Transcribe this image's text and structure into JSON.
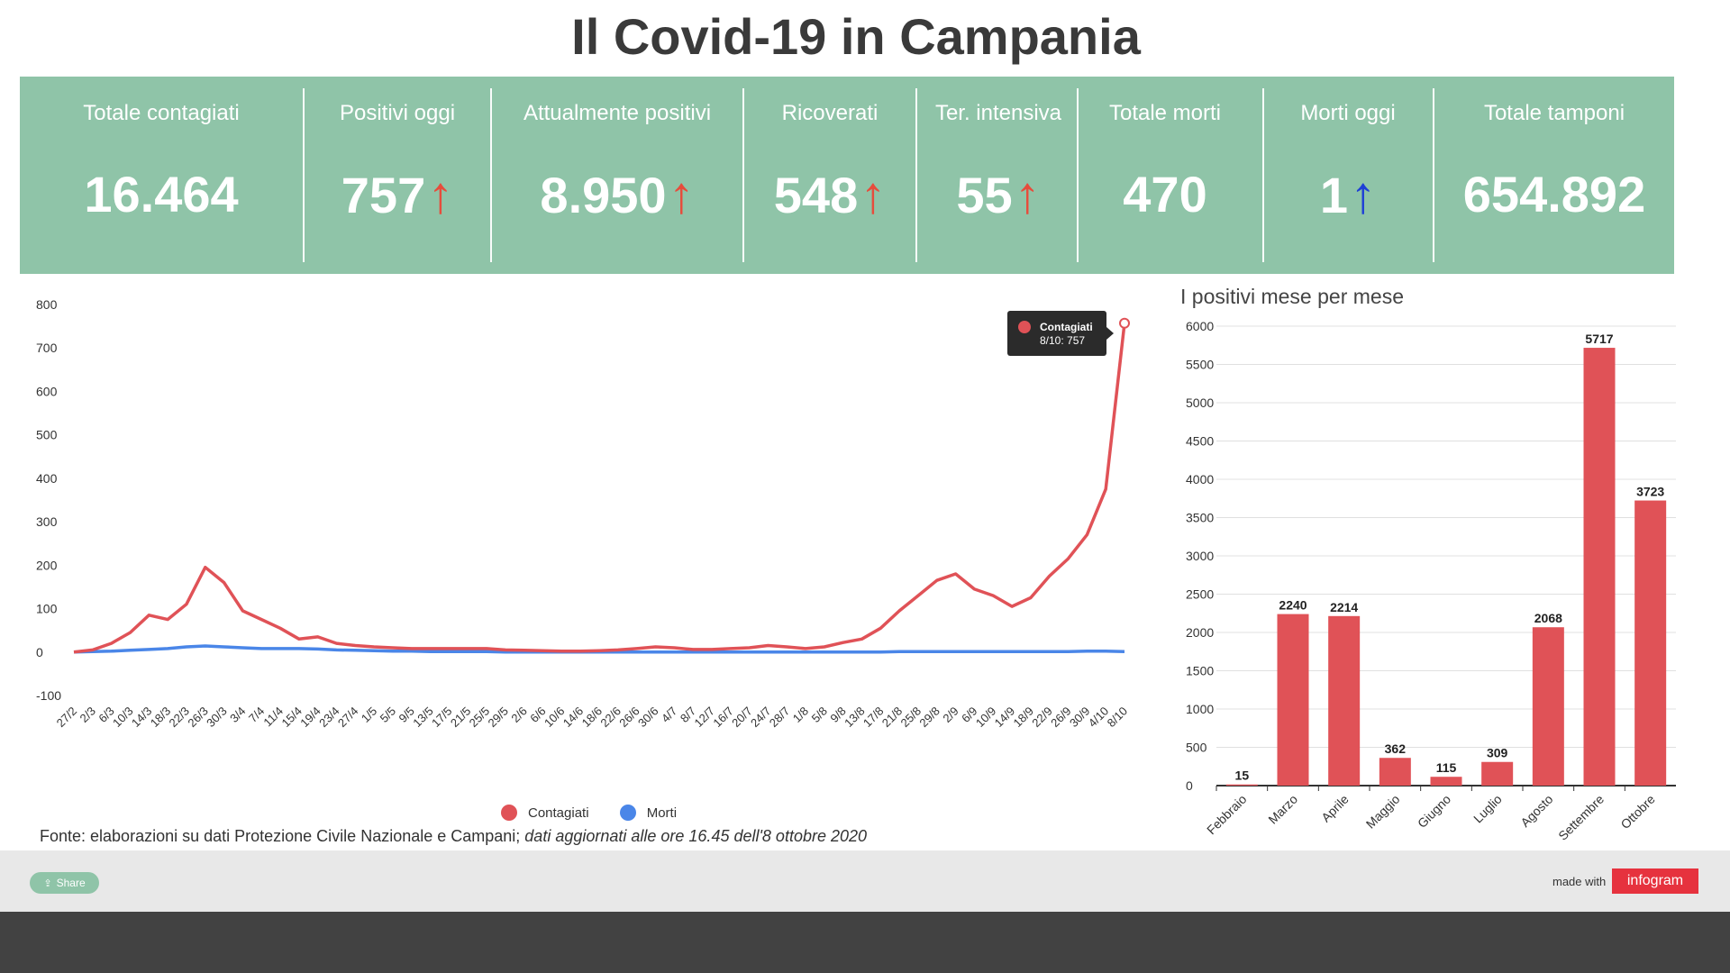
{
  "title": "Il Covid-19 in Campania",
  "stats": [
    {
      "label": "Totale contagiati",
      "value": "16.464",
      "arrow": "",
      "arrow_color": ""
    },
    {
      "label": "Positivi oggi",
      "value": "757",
      "arrow": "↑",
      "arrow_color": "#e74c3c"
    },
    {
      "label": "Attualmente positivi",
      "value": "8.950",
      "arrow": "↑",
      "arrow_color": "#e74c3c"
    },
    {
      "label": "Ricoverati",
      "value": "548",
      "arrow": "↑",
      "arrow_color": "#e74c3c"
    },
    {
      "label": "Ter. intensiva",
      "value": "55",
      "arrow": "↑",
      "arrow_color": "#e74c3c"
    },
    {
      "label": "Totale morti",
      "value": "470",
      "arrow": "",
      "arrow_color": ""
    },
    {
      "label": "Morti oggi",
      "value": "1",
      "arrow": "↑",
      "arrow_color": "#1e3fd6"
    },
    {
      "label": "Totale tamponi",
      "value": "654.892",
      "arrow": "",
      "arrow_color": ""
    }
  ],
  "colors": {
    "panel": "#8fc4a8",
    "contagiati": "#e05257",
    "morti": "#4a86e8",
    "bars": "#e05257"
  },
  "line_tooltip": {
    "series": "Contagiati",
    "text": "8/10: 757"
  },
  "source": {
    "prefix": "Fonte: elaborazioni su dati Protezione Civile Nazionale e Campani; ",
    "italic": "dati aggiornati alle ore 16.45 dell'8 ottobre 2020"
  },
  "footer": {
    "share": "Share",
    "made_with": "made with",
    "brand": "infogram"
  },
  "chart_data": [
    {
      "type": "line",
      "title": "",
      "x_ticks": [
        "27/2",
        "2/3",
        "6/3",
        "10/3",
        "14/3",
        "18/3",
        "22/3",
        "26/3",
        "30/3",
        "3/4",
        "7/4",
        "11/4",
        "15/4",
        "19/4",
        "23/4",
        "27/4",
        "1/5",
        "5/5",
        "9/5",
        "13/5",
        "17/5",
        "21/5",
        "25/5",
        "29/5",
        "2/6",
        "6/6",
        "10/6",
        "14/6",
        "18/6",
        "22/6",
        "26/6",
        "30/6",
        "4/7",
        "8/7",
        "12/7",
        "16/7",
        "20/7",
        "24/7",
        "28/7",
        "1/8",
        "5/8",
        "9/8",
        "13/8",
        "17/8",
        "21/8",
        "25/8",
        "29/8",
        "2/9",
        "6/9",
        "10/9",
        "14/9",
        "18/9",
        "22/9",
        "26/9",
        "30/9",
        "4/10",
        "8/10"
      ],
      "ylim": [
        -100,
        800
      ],
      "y_ticks": [
        -100,
        0,
        100,
        200,
        300,
        400,
        500,
        600,
        700,
        800
      ],
      "series": [
        {
          "name": "Contagiati",
          "values": [
            0,
            5,
            20,
            45,
            85,
            75,
            110,
            195,
            160,
            95,
            75,
            55,
            30,
            35,
            20,
            15,
            12,
            10,
            8,
            8,
            8,
            8,
            8,
            5,
            4,
            3,
            2,
            2,
            3,
            5,
            8,
            12,
            10,
            6,
            6,
            8,
            10,
            15,
            12,
            8,
            12,
            22,
            30,
            55,
            95,
            130,
            165,
            180,
            145,
            130,
            105,
            125,
            175,
            215,
            270,
            375,
            757
          ]
        },
        {
          "name": "Morti",
          "values": [
            0,
            1,
            2,
            4,
            6,
            8,
            12,
            14,
            12,
            10,
            8,
            8,
            8,
            7,
            5,
            4,
            3,
            2,
            2,
            1,
            1,
            1,
            1,
            0,
            0,
            0,
            0,
            0,
            0,
            0,
            0,
            0,
            0,
            0,
            0,
            0,
            0,
            0,
            0,
            0,
            0,
            0,
            0,
            0,
            1,
            1,
            1,
            1,
            1,
            1,
            1,
            1,
            1,
            1,
            2,
            2,
            1
          ]
        }
      ],
      "legend_position": "bottom"
    },
    {
      "type": "bar",
      "title": "I positivi mese per mese",
      "categories": [
        "Febbraio",
        "Marzo",
        "Aprile",
        "Maggio",
        "Giugno",
        "Luglio",
        "Agosto",
        "Settembre",
        "Ottobre"
      ],
      "values": [
        15,
        2240,
        2214,
        362,
        115,
        309,
        2068,
        5717,
        3723
      ],
      "ylim": [
        0,
        6000
      ],
      "y_ticks": [
        0,
        500,
        1000,
        1500,
        2000,
        2500,
        3000,
        3500,
        4000,
        4500,
        5000,
        5500,
        6000
      ]
    }
  ]
}
